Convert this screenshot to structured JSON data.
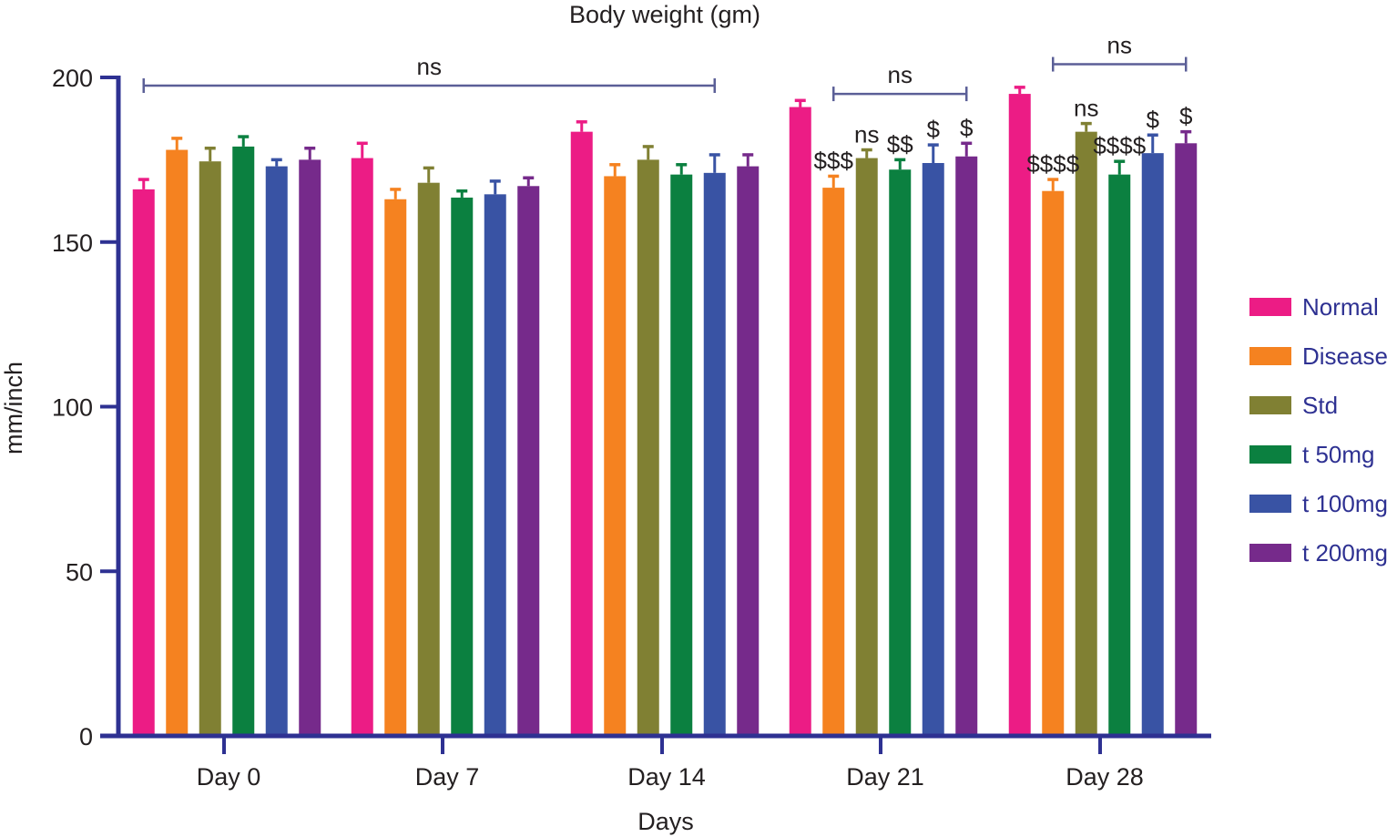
{
  "chart_data": {
    "type": "bar",
    "title": "Body weight (gm)",
    "xlabel": "Days",
    "ylabel": "mm/inch",
    "ylim": [
      0,
      200
    ],
    "yticks": [
      0,
      50,
      100,
      150,
      200
    ],
    "grid": false,
    "legend_position": "right",
    "categories": [
      "Day 0",
      "Day 7",
      "Day 14",
      "Day 21",
      "Day 28"
    ],
    "series": [
      {
        "name": "Normal",
        "color": "#ec1c85",
        "values": [
          166,
          175.5,
          183.5,
          191,
          195
        ],
        "errors": [
          3,
          4.5,
          3,
          2,
          2
        ]
      },
      {
        "name": "Disease",
        "color": "#f58220",
        "values": [
          178,
          163,
          170,
          166.5,
          165.5
        ],
        "errors": [
          3.5,
          3,
          3.5,
          3.5,
          3.5
        ]
      },
      {
        "name": "Std",
        "color": "#808033",
        "values": [
          174.5,
          168,
          175,
          175.5,
          183.5
        ],
        "errors": [
          4,
          4.5,
          4,
          2.5,
          2.5
        ]
      },
      {
        "name": "t 50mg",
        "color": "#0b8040",
        "values": [
          179,
          163.5,
          170.5,
          172,
          170.5
        ],
        "errors": [
          3,
          2,
          3,
          3,
          4
        ]
      },
      {
        "name": "t 100mg",
        "color": "#3953a4",
        "values": [
          173,
          164.5,
          171,
          174,
          177
        ],
        "errors": [
          2,
          4,
          5.5,
          5.5,
          5.5
        ]
      },
      {
        "name": "t 200mg",
        "color": "#762a8b",
        "values": [
          175,
          167,
          173,
          176,
          180
        ],
        "errors": [
          3.5,
          2.5,
          3.5,
          4,
          3.5
        ]
      }
    ],
    "annotations": {
      "brackets": [
        {
          "label": "ns",
          "from": [
            "Day 0",
            "Normal"
          ],
          "to": [
            "Day 14",
            "t 100mg"
          ],
          "y": 197.5
        },
        {
          "label": "ns",
          "from": [
            "Day 21",
            "Disease"
          ],
          "to": [
            "Day 21",
            "t 200mg"
          ],
          "y": 195
        },
        {
          "label": "ns",
          "from": [
            "Day 28",
            "Disease"
          ],
          "to": [
            "Day 28",
            "t 200mg"
          ],
          "y": 204
        }
      ],
      "bar_labels": [
        {
          "category": "Day 21",
          "series": "Disease",
          "label": "$$$"
        },
        {
          "category": "Day 21",
          "series": "Std",
          "label": "ns"
        },
        {
          "category": "Day 21",
          "series": "t 50mg",
          "label": "$$"
        },
        {
          "category": "Day 21",
          "series": "t 100mg",
          "label": "$"
        },
        {
          "category": "Day 21",
          "series": "t 200mg",
          "label": "$"
        },
        {
          "category": "Day 28",
          "series": "Disease",
          "label": "$$$$"
        },
        {
          "category": "Day 28",
          "series": "Std",
          "label": "ns"
        },
        {
          "category": "Day 28",
          "series": "t 50mg",
          "label": "$$$$"
        },
        {
          "category": "Day 28",
          "series": "t 100mg",
          "label": "$"
        },
        {
          "category": "Day 28",
          "series": "t 200mg",
          "label": "$"
        }
      ]
    }
  }
}
